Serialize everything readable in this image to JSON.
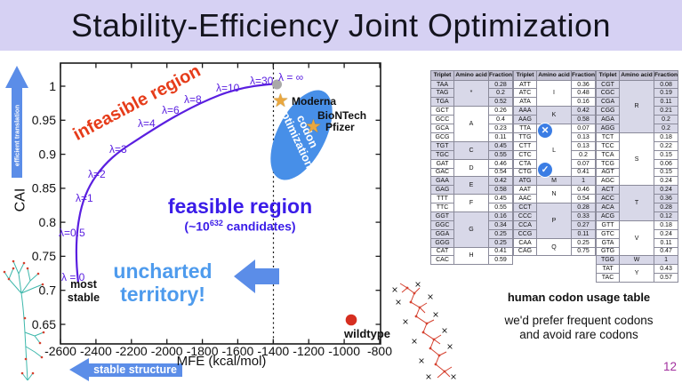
{
  "slide": {
    "title": "Stability-Efficiency Joint Optimization",
    "page_number": "12"
  },
  "chart_data": {
    "type": "line",
    "xlabel": "MFE (kcal/mol)",
    "ylabel": "CAI",
    "x_ticks": [
      "-2600",
      "-2400",
      "-2200",
      "-2000",
      "-1800",
      "-1600",
      "-1400",
      "-1200",
      "-1000",
      "-800"
    ],
    "y_ticks": [
      "1",
      "0.95",
      "0.9",
      "0.85",
      "0.8",
      "0.75",
      "0.7",
      "0.65"
    ],
    "xlim": [
      -2650,
      -780
    ],
    "ylim": [
      0.62,
      1.03
    ],
    "grid": false,
    "legend": "none",
    "vline_x": -1400,
    "series": [
      {
        "name": "pareto front (lambda sweep)",
        "points": [
          {
            "label": "λ = 0",
            "x": -2500,
            "y": 0.71
          },
          {
            "label": "λ=0.5",
            "x": -2495,
            "y": 0.8
          },
          {
            "label": "λ=1",
            "x": -2475,
            "y": 0.84
          },
          {
            "label": "λ=2",
            "x": -2365,
            "y": 0.88
          },
          {
            "label": "λ=3",
            "x": -2225,
            "y": 0.91
          },
          {
            "label": "λ=4",
            "x": -2080,
            "y": 0.935
          },
          {
            "label": "λ=6",
            "x": -1915,
            "y": 0.96
          },
          {
            "label": "λ=8",
            "x": -1790,
            "y": 0.975
          },
          {
            "label": "λ=10",
            "x": -1630,
            "y": 0.99
          },
          {
            "label": "λ=30",
            "x": -1430,
            "y": 1.0
          },
          {
            "label": "λ = ∞",
            "x": -1385,
            "y": 1.0
          }
        ]
      }
    ],
    "points": [
      {
        "label": "wildtype",
        "x": -960,
        "y": 0.66,
        "marker": "red-dot"
      },
      {
        "label": "Moderna",
        "x": -1350,
        "y": 0.98,
        "marker": "gold-star"
      },
      {
        "label": "BioNTech / Pfizer",
        "x": -1165,
        "y": 0.94,
        "marker": "gold-star"
      },
      {
        "label": "λ = ∞ endpoint",
        "x": -1385,
        "y": 1.0,
        "marker": "gray-dot"
      }
    ]
  },
  "annotations": {
    "infeasible": "infeasible region",
    "feasible_title": "feasible region",
    "feasible_sub_prefix": "(~10",
    "feasible_sub_exp": "632",
    "feasible_sub_suffix": " candidates)",
    "uncharted_line1": "uncharted",
    "uncharted_line2": "territory!",
    "most_stable_line1": "most",
    "most_stable_line2": "stable",
    "wildtype": "wildtype",
    "codon_opt_line1": "codon",
    "codon_opt_line2": "optimization",
    "moderna": "Moderna",
    "biontech": "BioNTech",
    "pfizer": "Pfizer"
  },
  "arrows": {
    "y_axis": "efficient translation",
    "x_axis": "stable structure"
  },
  "icons": {
    "star": "★",
    "cross": "✕",
    "check": "✓"
  },
  "caption": {
    "title": "human codon usage table",
    "line1": "we'd prefer frequent codons",
    "line2": "and avoid rare codons"
  },
  "colors": {
    "title_bg": "#d6d1f3",
    "curve": "#5a1fe0",
    "infeasible": "#e63c1a",
    "feasible": "#3a1ce8",
    "uncharted": "#4e9bed",
    "arrow_blue": "#5b8de8",
    "ellipse_blue": "#478fe8",
    "star_gold": "#eaa73e",
    "wildtype_red": "#d62e20",
    "gray_dot": "#a9a9a9",
    "icon_blue": "#3b7de4",
    "table_header": "#c6c4d6",
    "table_shaded": "#d8d8e8",
    "page_number": "#a22f9e"
  },
  "table": {
    "headers": [
      "Triplet",
      "Amino acid",
      "Fraction"
    ],
    "columns": [
      {
        "groups": [
          {
            "aa": "*",
            "shaded": true,
            "rows": [
              [
                "TAA",
                "0.28"
              ],
              [
                "TAG",
                "0.2"
              ],
              [
                "TGA",
                "0.52"
              ]
            ]
          },
          {
            "aa": "A",
            "shaded": false,
            "rows": [
              [
                "GCT",
                "0.26"
              ],
              [
                "GCC",
                "0.4"
              ],
              [
                "GCA",
                "0.23"
              ],
              [
                "GCG",
                "0.11"
              ]
            ]
          },
          {
            "aa": "C",
            "shaded": true,
            "rows": [
              [
                "TGT",
                "0.45"
              ],
              [
                "TGC",
                "0.55"
              ]
            ]
          },
          {
            "aa": "D",
            "shaded": false,
            "rows": [
              [
                "GAT",
                "0.46"
              ],
              [
                "GAC",
                "0.54"
              ]
            ]
          },
          {
            "aa": "E",
            "shaded": true,
            "rows": [
              [
                "GAA",
                "0.42"
              ],
              [
                "GAG",
                "0.58"
              ]
            ]
          },
          {
            "aa": "F",
            "shaded": false,
            "rows": [
              [
                "TTT",
                "0.45"
              ],
              [
                "TTC",
                "0.55"
              ]
            ]
          },
          {
            "aa": "G",
            "shaded": true,
            "rows": [
              [
                "GGT",
                "0.16"
              ],
              [
                "GGC",
                "0.34"
              ],
              [
                "GGA",
                "0.25"
              ],
              [
                "GGG",
                "0.25"
              ]
            ]
          },
          {
            "aa": "H",
            "shaded": false,
            "rows": [
              [
                "CAT",
                "0.41"
              ],
              [
                "CAC",
                "0.59"
              ]
            ]
          }
        ]
      },
      {
        "groups": [
          {
            "aa": "I",
            "shaded": false,
            "rows": [
              [
                "ATT",
                "0.36"
              ],
              [
                "ATC",
                "0.48"
              ],
              [
                "ATA",
                "0.16"
              ]
            ]
          },
          {
            "aa": "K",
            "shaded": true,
            "rows": [
              [
                "AAA",
                "0.42"
              ],
              [
                "AAG",
                "0.58"
              ]
            ]
          },
          {
            "aa": "L",
            "shaded": false,
            "rows": [
              [
                "TTA",
                "0.07"
              ],
              [
                "TTG",
                "0.13"
              ],
              [
                "CTT",
                "0.13"
              ],
              [
                "CTC",
                "0.2"
              ],
              [
                "CTA",
                "0.07"
              ],
              [
                "CTG",
                "0.41"
              ]
            ]
          },
          {
            "aa": "M",
            "shaded": true,
            "rows": [
              [
                "ATG",
                "1"
              ]
            ]
          },
          {
            "aa": "N",
            "shaded": false,
            "rows": [
              [
                "AAT",
                "0.46"
              ],
              [
                "AAC",
                "0.54"
              ]
            ]
          },
          {
            "aa": "P",
            "shaded": true,
            "rows": [
              [
                "CCT",
                "0.28"
              ],
              [
                "CCC",
                "0.33"
              ],
              [
                "CCA",
                "0.27"
              ],
              [
                "CCG",
                "0.11"
              ]
            ]
          },
          {
            "aa": "Q",
            "shaded": false,
            "rows": [
              [
                "CAA",
                "0.25"
              ],
              [
                "CAG",
                "0.75"
              ]
            ]
          }
        ]
      },
      {
        "groups": [
          {
            "aa": "R",
            "shaded": true,
            "rows": [
              [
                "CGT",
                "0.08"
              ],
              [
                "CGC",
                "0.19"
              ],
              [
                "CGA",
                "0.11"
              ],
              [
                "CGG",
                "0.21"
              ],
              [
                "AGA",
                "0.2"
              ],
              [
                "AGG",
                "0.2"
              ]
            ]
          },
          {
            "aa": "S",
            "shaded": false,
            "rows": [
              [
                "TCT",
                "0.18"
              ],
              [
                "TCC",
                "0.22"
              ],
              [
                "TCA",
                "0.15"
              ],
              [
                "TCG",
                "0.06"
              ],
              [
                "AGT",
                "0.15"
              ],
              [
                "AGC",
                "0.24"
              ]
            ]
          },
          {
            "aa": "T",
            "shaded": true,
            "rows": [
              [
                "ACT",
                "0.24"
              ],
              [
                "ACC",
                "0.36"
              ],
              [
                "ACA",
                "0.28"
              ],
              [
                "ACG",
                "0.12"
              ]
            ]
          },
          {
            "aa": "V",
            "shaded": false,
            "rows": [
              [
                "GTT",
                "0.18"
              ],
              [
                "GTC",
                "0.24"
              ],
              [
                "GTA",
                "0.11"
              ],
              [
                "GTG",
                "0.47"
              ]
            ]
          },
          {
            "aa": "W",
            "shaded": true,
            "rows": [
              [
                "TGG",
                "1"
              ]
            ]
          },
          {
            "aa": "Y",
            "shaded": false,
            "rows": [
              [
                "TAT",
                "0.43"
              ],
              [
                "TAC",
                "0.57"
              ]
            ]
          }
        ]
      }
    ]
  }
}
